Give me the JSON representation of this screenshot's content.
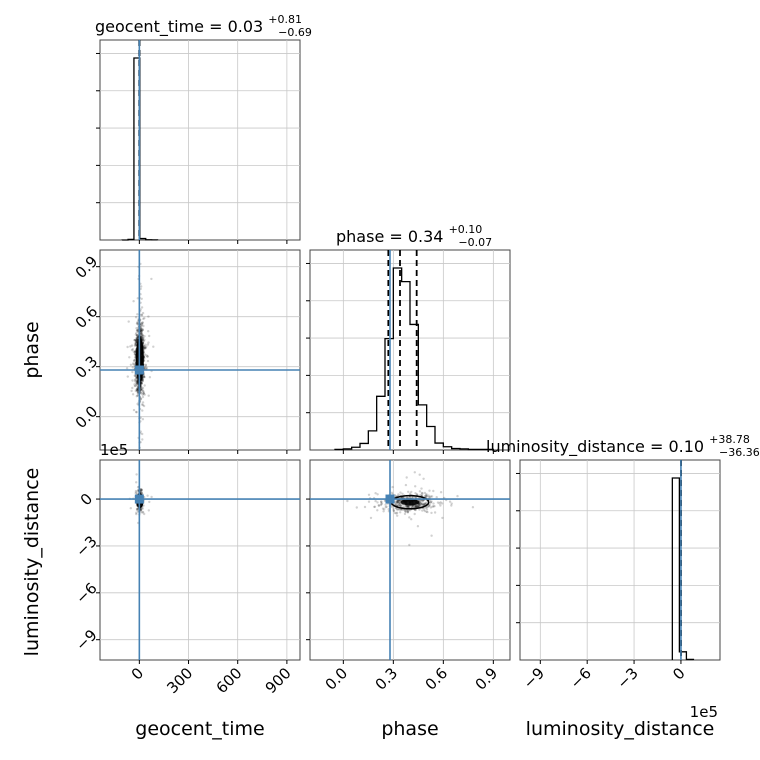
{
  "chart_data": {
    "type": "corner",
    "parameters": [
      "geocent_time",
      "phase",
      "luminosity_distance"
    ],
    "axis_labels": {
      "geocent_time": "geocent_time",
      "phase": "phase",
      "luminosity_distance": "luminosity_distance"
    },
    "ranges": {
      "geocent_time": [
        -240,
        980
      ],
      "phase": [
        -0.2,
        1.0
      ],
      "luminosity_distance": [
        -1030000,
        250000
      ]
    },
    "ticks": {
      "geocent_time": {
        "values": [
          0,
          300,
          600,
          900
        ],
        "labels": [
          "0",
          "300",
          "600",
          "900"
        ]
      },
      "phase": {
        "values": [
          0.0,
          0.3,
          0.6,
          0.9
        ],
        "labels": [
          "0.0",
          "0.3",
          "0.6",
          "0.9"
        ]
      },
      "luminosity_distance": {
        "values": [
          -900000,
          -600000,
          -300000,
          0
        ],
        "labels": [
          "−9",
          "−6",
          "−3",
          "0"
        ],
        "offset_label": "1e5"
      }
    },
    "truths": {
      "geocent_time": 0,
      "phase": 0.28,
      "luminosity_distance": 0
    },
    "grid": true,
    "marginals": [
      {
        "param": "geocent_time",
        "title": {
          "main": "geocent_time = 0.03",
          "plus": "+0.81",
          "minus": "−0.69"
        },
        "median": 0.03,
        "quantiles": [
          -0.66,
          0.84
        ],
        "bin_edges": [
          -105,
          -69,
          -33,
          3,
          39,
          75,
          111
        ],
        "counts": [
          0.02,
          0.3,
          100,
          0.8,
          0.15,
          0.05
        ]
      },
      {
        "param": "phase",
        "title": {
          "main": "phase = 0.34",
          "plus": "+0.10",
          "minus": "−0.07"
        },
        "median": 0.34,
        "quantiles": [
          0.27,
          0.44
        ],
        "bin_edges": [
          -0.05,
          0.0,
          0.05,
          0.1,
          0.15,
          0.2,
          0.25,
          0.3,
          0.35,
          0.4,
          0.45,
          0.5,
          0.55,
          0.6,
          0.65,
          0.7,
          0.75,
          0.8,
          0.85,
          0.9
        ],
        "counts": [
          0.3,
          0.6,
          1.5,
          3.6,
          10.5,
          29.5,
          61.2,
          100,
          92.5,
          69,
          24.8,
          12.9,
          3.8,
          1.8,
          0.8,
          0.6,
          0.3,
          0.3,
          0.3
        ]
      },
      {
        "param": "luminosity_distance",
        "title": {
          "main": "luminosity_distance = 0.10",
          "plus": "+38.78",
          "minus": "−36.36"
        },
        "median": 0.1,
        "quantiles": [
          -36.26,
          38.88
        ],
        "bin_edges": [
          -55000,
          -10000,
          35000,
          80000
        ],
        "counts": [
          100,
          4.5,
          0.3
        ]
      }
    ],
    "pairs": [
      {
        "x": "geocent_time",
        "y": "phase",
        "center": [
          3,
          0.34
        ],
        "spread": [
          12,
          0.09
        ],
        "sample_count": 1600
      },
      {
        "x": "geocent_time",
        "y": "luminosity_distance",
        "center": [
          3,
          -10000
        ],
        "spread": [
          10,
          30000
        ],
        "sample_count": 300
      },
      {
        "x": "phase",
        "y": "luminosity_distance",
        "center": [
          0.4,
          -20000
        ],
        "spread": [
          0.07,
          30000
        ],
        "sample_count": 500
      }
    ]
  }
}
